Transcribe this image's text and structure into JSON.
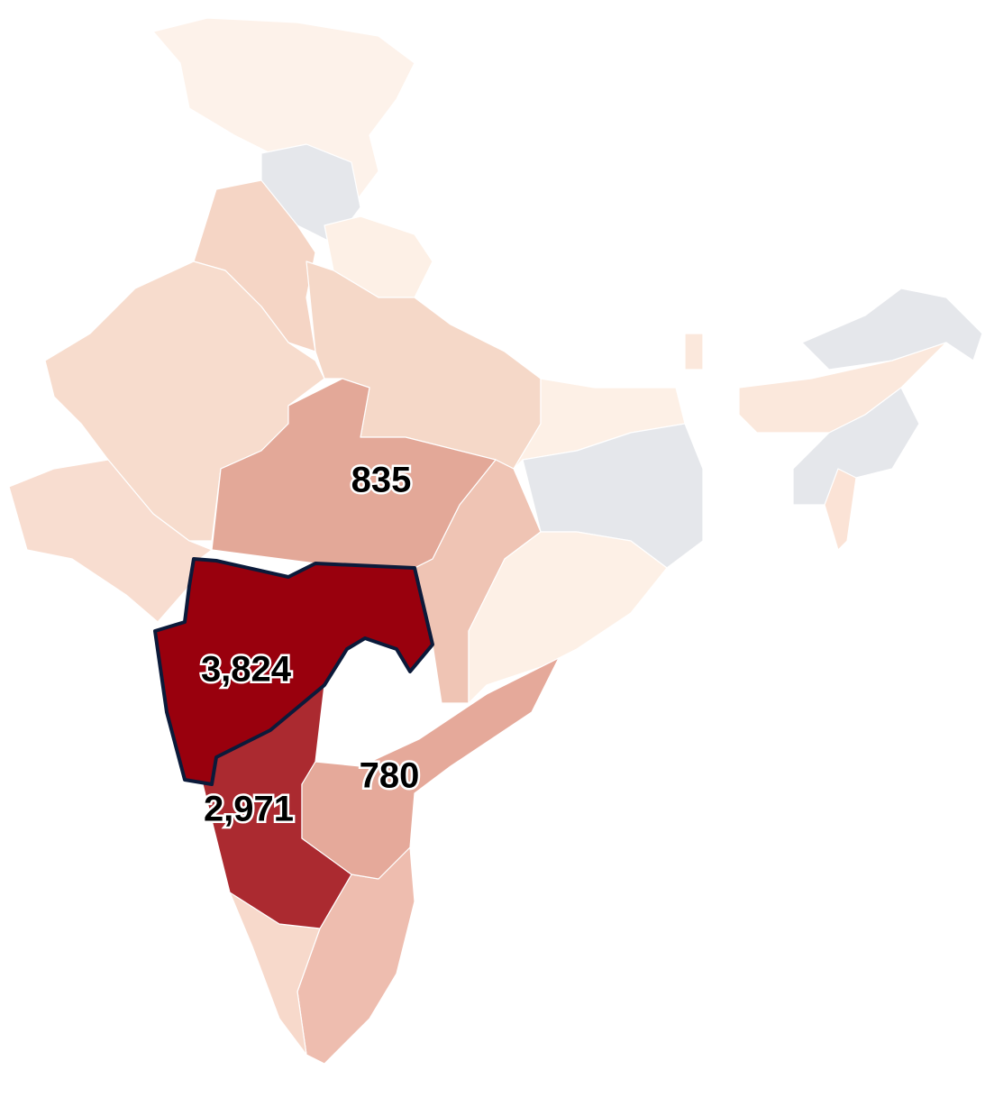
{
  "chart_data": {
    "type": "choropleth",
    "values": [
      835,
      3824,
      2971,
      780
    ],
    "value_labels": [
      "835",
      "3,824",
      "2,971",
      "780"
    ],
    "colors": [
      "#e3a898",
      "#99000d",
      "#ab2a30",
      "#e5a99a"
    ]
  }
}
